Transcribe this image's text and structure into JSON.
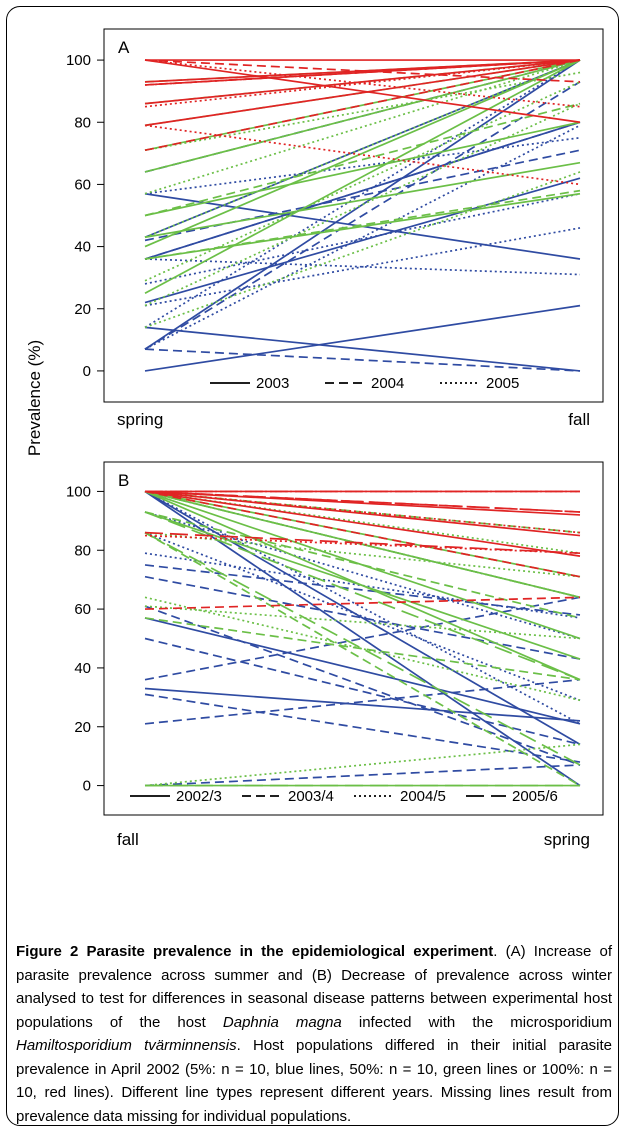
{
  "figure": {
    "ylabel": "Prevalence (%)",
    "caption": {
      "title": "Figure 2 Parasite prevalence in the epidemiological experiment",
      "t1": ". (A) Increase of parasite prevalence across summer and (B) Decrease of prevalence across winter analysed to test for differences in seasonal disease patterns between experimental host populations of the host ",
      "species1": "Daphnia magna",
      "t2": " infected with the microsporidium ",
      "species2": "Hamiltosporidium tvärminnensis",
      "t3": ". Host populations differed in their initial parasite prevalence in April 2002 (5%: n = 10, blue lines, 50%: n = 10, green lines or 100%: n = 10, red lines). Different line types represent different years. Missing lines result from prevalence data missing for individual populations."
    }
  },
  "colors": {
    "blue": "#2f4ba2",
    "green": "#6bbf47",
    "red": "#e02424"
  },
  "chart_data": [
    {
      "type": "line",
      "panel_label": "A",
      "categories": [
        "spring",
        "fall"
      ],
      "ylim": [
        -10,
        110
      ],
      "yticks": [
        0,
        20,
        40,
        60,
        80,
        100
      ],
      "legend": [
        "2003",
        "2004",
        "2005"
      ],
      "legend_position": "bottom",
      "series": [
        {
          "group": "blue",
          "style": "solid",
          "values": [
            0,
            21
          ]
        },
        {
          "group": "blue",
          "style": "solid",
          "values": [
            14,
            0
          ]
        },
        {
          "group": "blue",
          "style": "solid",
          "values": [
            22,
            62
          ]
        },
        {
          "group": "blue",
          "style": "solid",
          "values": [
            36,
            80
          ]
        },
        {
          "group": "blue",
          "style": "solid",
          "values": [
            57,
            36
          ]
        },
        {
          "group": "blue",
          "style": "solid",
          "values": [
            7,
            100
          ]
        },
        {
          "group": "blue",
          "style": "solid",
          "values": [
            43,
            100
          ]
        },
        {
          "group": "blue",
          "style": "dashed",
          "values": [
            7,
            0
          ]
        },
        {
          "group": "blue",
          "style": "dashed",
          "values": [
            7,
            93
          ]
        },
        {
          "group": "blue",
          "style": "dashed",
          "values": [
            64,
            100
          ]
        },
        {
          "group": "blue",
          "style": "dashed",
          "values": [
            42,
            71
          ]
        },
        {
          "group": "blue",
          "style": "dashed",
          "values": [
            36,
            80
          ]
        },
        {
          "group": "blue",
          "style": "dotted",
          "values": [
            36,
            31
          ]
        },
        {
          "group": "blue",
          "style": "dotted",
          "values": [
            28,
            57
          ]
        },
        {
          "group": "blue",
          "style": "dotted",
          "values": [
            21,
            46
          ]
        },
        {
          "group": "blue",
          "style": "dotted",
          "values": [
            57,
            75
          ]
        },
        {
          "group": "blue",
          "style": "dotted",
          "values": [
            14,
            100
          ]
        },
        {
          "group": "blue",
          "style": "dotted",
          "values": [
            7,
            79
          ]
        },
        {
          "group": "green",
          "style": "solid",
          "values": [
            25,
            100
          ]
        },
        {
          "group": "green",
          "style": "solid",
          "values": [
            36,
            57
          ]
        },
        {
          "group": "green",
          "style": "solid",
          "values": [
            43,
            67
          ]
        },
        {
          "group": "green",
          "style": "solid",
          "values": [
            50,
            80
          ]
        },
        {
          "group": "green",
          "style": "solid",
          "values": [
            64,
            100
          ]
        },
        {
          "group": "green",
          "style": "solid",
          "values": [
            71,
            100
          ]
        },
        {
          "group": "green",
          "style": "solid",
          "values": [
            40,
            100
          ]
        },
        {
          "group": "green",
          "style": "dashed",
          "values": [
            36,
            58
          ]
        },
        {
          "group": "green",
          "style": "dashed",
          "values": [
            50,
            86
          ]
        },
        {
          "group": "green",
          "style": "dashed",
          "values": [
            79,
            100
          ]
        },
        {
          "group": "green",
          "style": "dashed",
          "values": [
            86,
            100
          ]
        },
        {
          "group": "green",
          "style": "dashed",
          "values": [
            93,
            100
          ]
        },
        {
          "group": "green",
          "style": "dotted",
          "values": [
            14,
            64
          ]
        },
        {
          "group": "green",
          "style": "dotted",
          "values": [
            21,
            86
          ]
        },
        {
          "group": "green",
          "style": "dotted",
          "values": [
            29,
            93
          ]
        },
        {
          "group": "green",
          "style": "dotted",
          "values": [
            43,
            100
          ]
        },
        {
          "group": "green",
          "style": "dotted",
          "values": [
            57,
            100
          ]
        },
        {
          "group": "green",
          "style": "dotted",
          "values": [
            71,
            96
          ]
        },
        {
          "group": "red",
          "style": "solid",
          "values": [
            100,
            100
          ]
        },
        {
          "group": "red",
          "style": "solid",
          "values": [
            100,
            80
          ]
        },
        {
          "group": "red",
          "style": "solid",
          "values": [
            93,
            100
          ]
        },
        {
          "group": "red",
          "style": "solid",
          "values": [
            86,
            100
          ]
        },
        {
          "group": "red",
          "style": "solid",
          "values": [
            79,
            100
          ]
        },
        {
          "group": "red",
          "style": "solid",
          "values": [
            92,
            100
          ]
        },
        {
          "group": "red",
          "style": "dashed",
          "values": [
            100,
            93
          ]
        },
        {
          "group": "red",
          "style": "dashed",
          "values": [
            71,
            100
          ]
        },
        {
          "group": "red",
          "style": "dashed",
          "values": [
            92,
            100
          ]
        },
        {
          "group": "red",
          "style": "dotted",
          "values": [
            79,
            60
          ]
        },
        {
          "group": "red",
          "style": "dotted",
          "values": [
            92,
            100
          ]
        },
        {
          "group": "red",
          "style": "dotted",
          "values": [
            100,
            85
          ]
        },
        {
          "group": "red",
          "style": "dotted",
          "values": [
            85,
            100
          ]
        }
      ]
    },
    {
      "type": "line",
      "panel_label": "B",
      "categories": [
        "fall",
        "spring"
      ],
      "ylim": [
        -10,
        110
      ],
      "yticks": [
        0,
        20,
        40,
        60,
        80,
        100
      ],
      "legend": [
        "2002/3",
        "2003/4",
        "2004/5",
        "2005/6"
      ],
      "legend_position": "bottom",
      "series": [
        {
          "group": "blue",
          "style": "solid",
          "values": [
            33,
            22
          ]
        },
        {
          "group": "blue",
          "style": "solid",
          "values": [
            100,
            14
          ]
        },
        {
          "group": "blue",
          "style": "solid",
          "values": [
            100,
            0
          ]
        },
        {
          "group": "blue",
          "style": "solid",
          "values": [
            57,
            21
          ]
        },
        {
          "group": "blue",
          "style": "dashed",
          "values": [
            21,
            36
          ]
        },
        {
          "group": "blue",
          "style": "dashed",
          "values": [
            31,
            8
          ]
        },
        {
          "group": "blue",
          "style": "dashed",
          "values": [
            36,
            64
          ]
        },
        {
          "group": "blue",
          "style": "dashed",
          "values": [
            50,
            14
          ]
        },
        {
          "group": "blue",
          "style": "dashed",
          "values": [
            61,
            7
          ]
        },
        {
          "group": "blue",
          "style": "dashed",
          "values": [
            71,
            43
          ]
        },
        {
          "group": "blue",
          "style": "dashed",
          "values": [
            75,
            58
          ]
        },
        {
          "group": "blue",
          "style": "dashed",
          "values": [
            0,
            7
          ]
        },
        {
          "group": "blue",
          "style": "dotted",
          "values": [
            100,
            21
          ]
        },
        {
          "group": "blue",
          "style": "dotted",
          "values": [
            86,
            29
          ]
        },
        {
          "group": "blue",
          "style": "dotted",
          "values": [
            93,
            50
          ]
        },
        {
          "group": "blue",
          "style": "dotted",
          "values": [
            100,
            64
          ]
        },
        {
          "group": "blue",
          "style": "dotted",
          "values": [
            79,
            57
          ]
        },
        {
          "group": "green",
          "style": "solid",
          "values": [
            100,
            36
          ]
        },
        {
          "group": "green",
          "style": "solid",
          "values": [
            100,
            50
          ]
        },
        {
          "group": "green",
          "style": "solid",
          "values": [
            93,
            43
          ]
        },
        {
          "group": "green",
          "style": "solid",
          "values": [
            100,
            64
          ]
        },
        {
          "group": "green",
          "style": "solid",
          "values": [
            100,
            71
          ]
        },
        {
          "group": "green",
          "style": "solid",
          "values": [
            0,
            0
          ]
        },
        {
          "group": "green",
          "style": "dashed",
          "values": [
            86,
            0
          ]
        },
        {
          "group": "green",
          "style": "dashed",
          "values": [
            93,
            57
          ]
        },
        {
          "group": "green",
          "style": "dashed",
          "values": [
            100,
            86
          ]
        },
        {
          "group": "green",
          "style": "dashed",
          "values": [
            57,
            36
          ]
        },
        {
          "group": "green",
          "style": "dotted",
          "values": [
            0,
            14
          ]
        },
        {
          "group": "green",
          "style": "dotted",
          "values": [
            64,
            29
          ]
        },
        {
          "group": "green",
          "style": "dotted",
          "values": [
            100,
            79
          ]
        },
        {
          "group": "green",
          "style": "dotted",
          "values": [
            86,
            71
          ]
        },
        {
          "group": "green",
          "style": "dotted",
          "values": [
            61,
            50
          ]
        },
        {
          "group": "green",
          "style": "longdash",
          "values": [
            0,
            0
          ]
        },
        {
          "group": "green",
          "style": "longdash",
          "values": [
            86,
            7
          ]
        },
        {
          "group": "green",
          "style": "longdash",
          "values": [
            100,
            64
          ]
        },
        {
          "group": "green",
          "style": "longdash",
          "values": [
            93,
            36
          ]
        },
        {
          "group": "red",
          "style": "solid",
          "values": [
            100,
            100
          ]
        },
        {
          "group": "red",
          "style": "solid",
          "values": [
            100,
            92
          ]
        },
        {
          "group": "red",
          "style": "solid",
          "values": [
            100,
            85
          ]
        },
        {
          "group": "red",
          "style": "solid",
          "values": [
            100,
            78
          ]
        },
        {
          "group": "red",
          "style": "dashed",
          "values": [
            60,
            64
          ]
        },
        {
          "group": "red",
          "style": "dashed",
          "values": [
            100,
            93
          ]
        },
        {
          "group": "red",
          "style": "dashed",
          "values": [
            100,
            71
          ]
        },
        {
          "group": "red",
          "style": "dotted",
          "values": [
            100,
            100
          ]
        },
        {
          "group": "red",
          "style": "dotted",
          "values": [
            85,
            79
          ]
        },
        {
          "group": "red",
          "style": "dotted",
          "values": [
            100,
            86
          ]
        },
        {
          "group": "red",
          "style": "longdash",
          "values": [
            100,
            100
          ]
        },
        {
          "group": "red",
          "style": "longdash",
          "values": [
            100,
            93
          ]
        },
        {
          "group": "red",
          "style": "longdash",
          "values": [
            86,
            79
          ]
        }
      ]
    }
  ]
}
